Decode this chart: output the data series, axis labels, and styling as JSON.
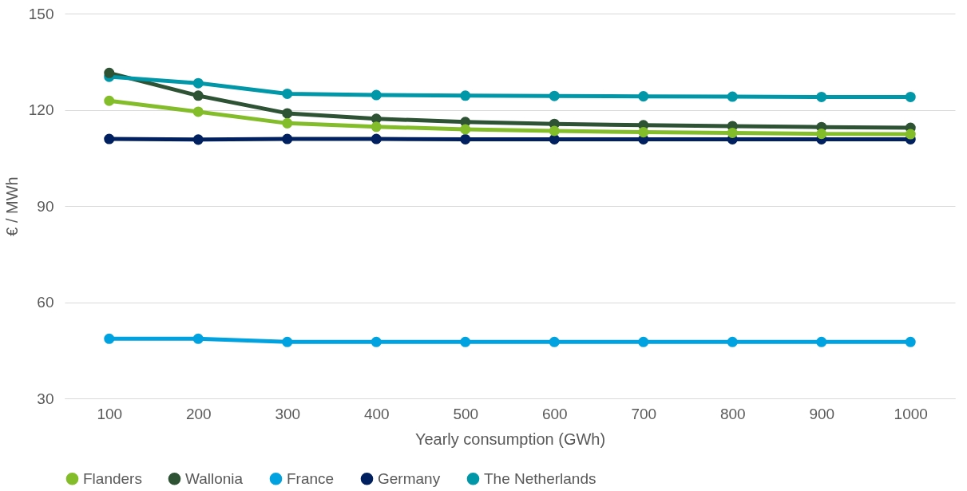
{
  "chart_data": {
    "type": "line",
    "xlabel": "Yearly consumption (GWh)",
    "ylabel": "€ / MWh",
    "categories": [
      "100",
      "200",
      "300",
      "400",
      "500",
      "600",
      "700",
      "800",
      "900",
      "1000"
    ],
    "series": [
      {
        "name": "Flanders",
        "color": "#84bd2a",
        "values": [
          122.8,
          119.4,
          115.8,
          114.7,
          113.9,
          113.4,
          113.0,
          112.8,
          112.5,
          112.4
        ]
      },
      {
        "name": "Wallonia",
        "color": "#2d5234",
        "values": [
          131.5,
          124.4,
          118.9,
          117.2,
          116.2,
          115.6,
          115.2,
          114.9,
          114.6,
          114.4
        ]
      },
      {
        "name": "France",
        "color": "#00a2e0",
        "values": [
          48.6,
          48.6,
          47.6,
          47.6,
          47.6,
          47.6,
          47.6,
          47.6,
          47.6,
          47.6
        ]
      },
      {
        "name": "Germany",
        "color": "#00205f",
        "values": [
          110.9,
          110.7,
          110.9,
          110.9,
          110.8,
          110.8,
          110.8,
          110.8,
          110.8,
          110.8
        ]
      },
      {
        "name": "The Netherlands",
        "color": "#0097a9",
        "values": [
          130.3,
          128.3,
          125.0,
          124.6,
          124.4,
          124.3,
          124.2,
          124.1,
          124.0,
          124.0
        ]
      }
    ],
    "ylim": [
      30,
      150
    ],
    "yticks": [
      30,
      60,
      90,
      120,
      150
    ],
    "grid": "y",
    "legend": "bottom",
    "marker": "circle",
    "line_style": "solid"
  }
}
